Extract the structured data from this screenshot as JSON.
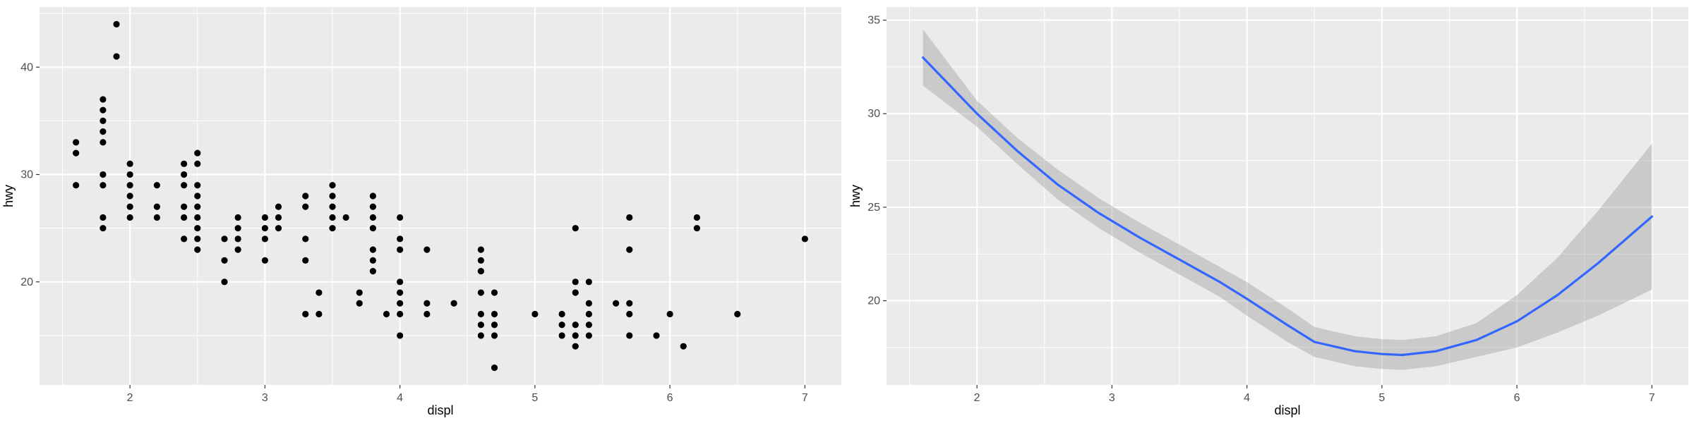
{
  "chart_data": [
    {
      "type": "scatter",
      "title": "",
      "xlabel": "displ",
      "ylabel": "hwy",
      "xlim": [
        1.33,
        7.27
      ],
      "ylim": [
        10.4,
        45.6
      ],
      "x_ticks": [
        2,
        3,
        4,
        5,
        6,
        7
      ],
      "y_ticks": [
        20,
        30,
        40
      ],
      "grid": true,
      "series": [
        {
          "points": [
            [
              1.6,
              33
            ],
            [
              1.6,
              32
            ],
            [
              1.6,
              29
            ],
            [
              1.8,
              37
            ],
            [
              1.8,
              36
            ],
            [
              1.8,
              35
            ],
            [
              1.8,
              34
            ],
            [
              1.8,
              33
            ],
            [
              1.8,
              30
            ],
            [
              1.8,
              29
            ],
            [
              1.8,
              26
            ],
            [
              1.8,
              25
            ],
            [
              1.9,
              44
            ],
            [
              1.9,
              41
            ],
            [
              2.0,
              31
            ],
            [
              2.0,
              30
            ],
            [
              2.0,
              29
            ],
            [
              2.0,
              28
            ],
            [
              2.0,
              27
            ],
            [
              2.0,
              26
            ],
            [
              2.2,
              29
            ],
            [
              2.2,
              27
            ],
            [
              2.2,
              26
            ],
            [
              2.4,
              31
            ],
            [
              2.4,
              30
            ],
            [
              2.4,
              29
            ],
            [
              2.4,
              27
            ],
            [
              2.4,
              26
            ],
            [
              2.4,
              24
            ],
            [
              2.5,
              32
            ],
            [
              2.5,
              31
            ],
            [
              2.5,
              29
            ],
            [
              2.5,
              28
            ],
            [
              2.5,
              27
            ],
            [
              2.5,
              26
            ],
            [
              2.5,
              25
            ],
            [
              2.5,
              24
            ],
            [
              2.5,
              23
            ],
            [
              2.7,
              24
            ],
            [
              2.7,
              22
            ],
            [
              2.7,
              20
            ],
            [
              2.8,
              26
            ],
            [
              2.8,
              25
            ],
            [
              2.8,
              24
            ],
            [
              2.8,
              23
            ],
            [
              3.0,
              26
            ],
            [
              3.0,
              25
            ],
            [
              3.0,
              24
            ],
            [
              3.0,
              22
            ],
            [
              3.1,
              27
            ],
            [
              3.1,
              26
            ],
            [
              3.1,
              25
            ],
            [
              3.3,
              28
            ],
            [
              3.3,
              27
            ],
            [
              3.3,
              24
            ],
            [
              3.3,
              22
            ],
            [
              3.3,
              17
            ],
            [
              3.4,
              19
            ],
            [
              3.4,
              17
            ],
            [
              3.5,
              29
            ],
            [
              3.5,
              28
            ],
            [
              3.5,
              27
            ],
            [
              3.5,
              26
            ],
            [
              3.5,
              25
            ],
            [
              3.6,
              26
            ],
            [
              3.7,
              19
            ],
            [
              3.7,
              18
            ],
            [
              3.8,
              28
            ],
            [
              3.8,
              27
            ],
            [
              3.8,
              26
            ],
            [
              3.8,
              25
            ],
            [
              3.8,
              23
            ],
            [
              3.8,
              22
            ],
            [
              3.8,
              21
            ],
            [
              3.9,
              17
            ],
            [
              4.0,
              26
            ],
            [
              4.0,
              24
            ],
            [
              4.0,
              23
            ],
            [
              4.0,
              20
            ],
            [
              4.0,
              19
            ],
            [
              4.0,
              18
            ],
            [
              4.0,
              17
            ],
            [
              4.0,
              15
            ],
            [
              4.2,
              23
            ],
            [
              4.2,
              18
            ],
            [
              4.2,
              17
            ],
            [
              4.4,
              18
            ],
            [
              4.6,
              23
            ],
            [
              4.6,
              22
            ],
            [
              4.6,
              21
            ],
            [
              4.6,
              19
            ],
            [
              4.6,
              17
            ],
            [
              4.6,
              16
            ],
            [
              4.6,
              15
            ],
            [
              4.7,
              19
            ],
            [
              4.7,
              17
            ],
            [
              4.7,
              16
            ],
            [
              4.7,
              15
            ],
            [
              4.7,
              12
            ],
            [
              5.0,
              17
            ],
            [
              5.2,
              17
            ],
            [
              5.2,
              16
            ],
            [
              5.2,
              15
            ],
            [
              5.3,
              25
            ],
            [
              5.3,
              20
            ],
            [
              5.3,
              19
            ],
            [
              5.3,
              16
            ],
            [
              5.3,
              15
            ],
            [
              5.3,
              14
            ],
            [
              5.4,
              20
            ],
            [
              5.4,
              18
            ],
            [
              5.4,
              17
            ],
            [
              5.4,
              16
            ],
            [
              5.4,
              15
            ],
            [
              5.6,
              18
            ],
            [
              5.7,
              26
            ],
            [
              5.7,
              23
            ],
            [
              5.7,
              18
            ],
            [
              5.7,
              17
            ],
            [
              5.7,
              15
            ],
            [
              5.9,
              15
            ],
            [
              6.0,
              17
            ],
            [
              6.1,
              14
            ],
            [
              6.2,
              26
            ],
            [
              6.2,
              25
            ],
            [
              6.5,
              17
            ],
            [
              7.0,
              24
            ]
          ]
        }
      ]
    },
    {
      "type": "line",
      "title": "",
      "xlabel": "displ",
      "ylabel": "hwy",
      "xlim": [
        1.33,
        7.27
      ],
      "ylim": [
        15.5,
        35.7
      ],
      "x_ticks": [
        2,
        3,
        4,
        5,
        6,
        7
      ],
      "y_ticks": [
        20,
        25,
        30,
        35
      ],
      "grid": true,
      "line_color": "#3366FF",
      "band_color": "#999999",
      "series": [
        {
          "x": [
            1.6,
            1.8,
            2.0,
            2.3,
            2.6,
            2.9,
            3.2,
            3.5,
            3.8,
            4.0,
            4.3,
            4.5,
            4.8,
            5.0,
            5.15,
            5.4,
            5.7,
            6.0,
            6.3,
            6.6,
            7.0
          ],
          "y": [
            33.0,
            31.5,
            30.0,
            28.0,
            26.2,
            24.7,
            23.4,
            22.2,
            21.0,
            20.1,
            18.7,
            17.8,
            17.3,
            17.15,
            17.1,
            17.3,
            17.9,
            18.9,
            20.3,
            22.0,
            24.5
          ],
          "lower": [
            31.5,
            30.4,
            29.3,
            27.3,
            25.4,
            23.9,
            22.6,
            21.4,
            20.2,
            19.2,
            17.8,
            17.0,
            16.5,
            16.35,
            16.3,
            16.5,
            17.0,
            17.5,
            18.3,
            19.2,
            20.6
          ],
          "upper": [
            34.5,
            32.6,
            30.7,
            28.7,
            27.0,
            25.5,
            24.2,
            23.0,
            21.8,
            21.0,
            19.6,
            18.6,
            18.1,
            17.95,
            17.9,
            18.1,
            18.8,
            20.3,
            22.3,
            24.8,
            28.4
          ]
        }
      ]
    }
  ]
}
